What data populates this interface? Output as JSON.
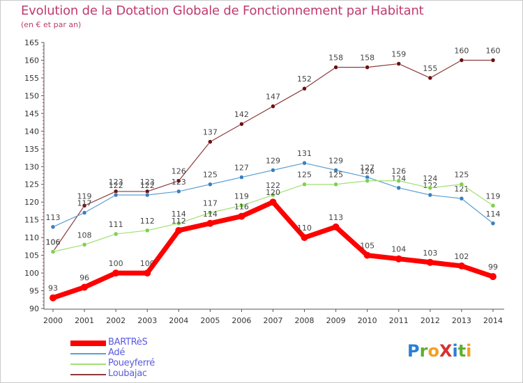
{
  "title": "Evolution de la Dotation Globale de Fonctionnement par Habitant",
  "subtitle": "(en € et par an)",
  "brand": {
    "letters": [
      {
        "ch": "P",
        "color": "#2a7fd4"
      },
      {
        "ch": "r",
        "color": "#5fae2e"
      },
      {
        "ch": "o",
        "color": "#f0a020"
      },
      {
        "ch": "X",
        "color": "#d83030"
      },
      {
        "ch": "i",
        "color": "#2a7fd4"
      },
      {
        "ch": "t",
        "color": "#5fae2e"
      },
      {
        "ch": "i",
        "color": "#f0a020"
      }
    ]
  },
  "chart_data": {
    "type": "line",
    "title": "Evolution de la Dotation Globale de Fonctionnement par Habitant",
    "subtitle": "(en € et par an)",
    "xlabel": "",
    "ylabel": "",
    "ylim": [
      90,
      165
    ],
    "y_ticks": [
      90,
      95,
      100,
      105,
      110,
      115,
      120,
      125,
      130,
      135,
      140,
      145,
      150,
      155,
      160,
      165
    ],
    "grid": false,
    "legend_position": "bottom-left",
    "categories": [
      "2000",
      "2001",
      "2002",
      "2003",
      "2004",
      "2005",
      "2006",
      "2007",
      "2008",
      "2009",
      "2010",
      "2011",
      "2012",
      "2013",
      "2014"
    ],
    "series": [
      {
        "name": "Loubajac",
        "color": "#8b3a3a",
        "dot": "#6b1010",
        "width": 1.2,
        "values": [
          106,
          119,
          123,
          123,
          126,
          137,
          142,
          147,
          152,
          158,
          158,
          159,
          155,
          160,
          160
        ]
      },
      {
        "name": "Adé",
        "color": "#5a9fd4",
        "dot": "#3a7fbf",
        "width": 1.2,
        "values": [
          113,
          117,
          122,
          122,
          123,
          125,
          127,
          129,
          131,
          129,
          127,
          124,
          122,
          121,
          114
        ]
      },
      {
        "name": "Poueyferré",
        "color": "#a0e070",
        "dot": "#7ed04b",
        "width": 1.2,
        "values": [
          106,
          108,
          111,
          112,
          114,
          117,
          119,
          122,
          125,
          125,
          126,
          126,
          124,
          125,
          119
        ]
      },
      {
        "name": "BARTRèS",
        "color": "#ff0000",
        "dot": "#ff0000",
        "width": 7,
        "values": [
          93,
          96,
          100,
          100,
          112,
          114,
          116,
          120,
          110,
          113,
          105,
          104,
          103,
          102,
          99
        ]
      }
    ]
  }
}
